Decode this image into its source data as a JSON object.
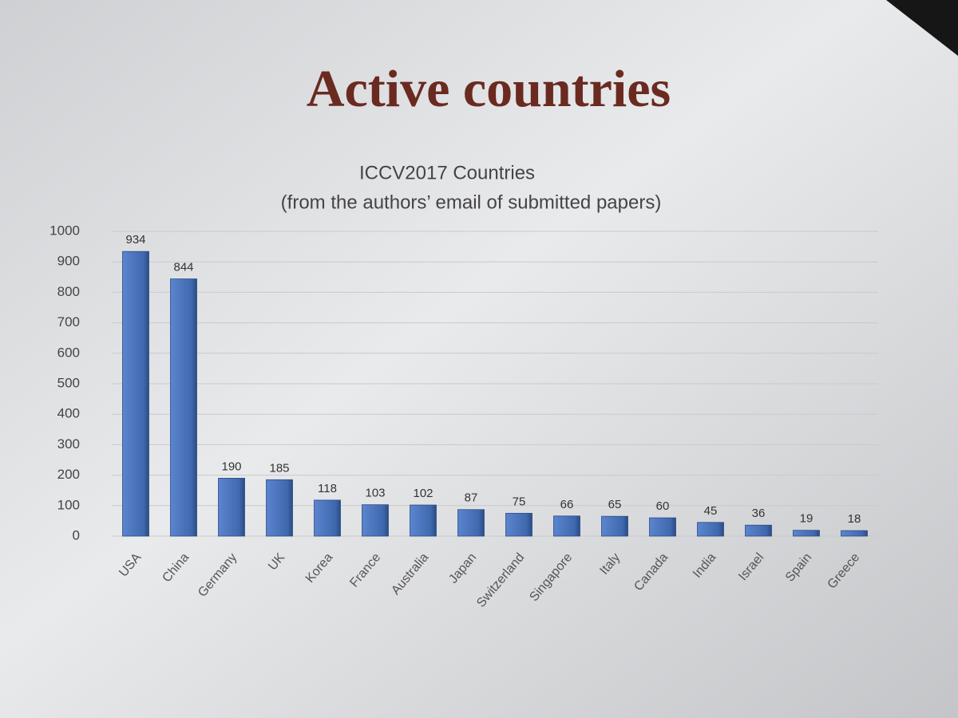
{
  "heading": "Active countries",
  "chart_data": {
    "type": "bar",
    "title": "ICCV2017 Countries",
    "subtitle": "(from the authors’ email of submitted  papers)",
    "categories": [
      "USA",
      "China",
      "Germany",
      "UK",
      "Korea",
      "France",
      "Australia",
      "Japan",
      "Switzerland",
      "Singapore",
      "Italy",
      "Canada",
      "India",
      "Israel",
      "Spain",
      "Greece"
    ],
    "values": [
      934,
      844,
      190,
      185,
      118,
      103,
      102,
      87,
      75,
      66,
      65,
      60,
      45,
      36,
      19,
      18
    ],
    "color": "#4a72b8",
    "ylim": [
      0,
      1000
    ],
    "yticks": [
      0,
      100,
      200,
      300,
      400,
      500,
      600,
      700,
      800,
      900,
      1000
    ],
    "grid": true
  }
}
